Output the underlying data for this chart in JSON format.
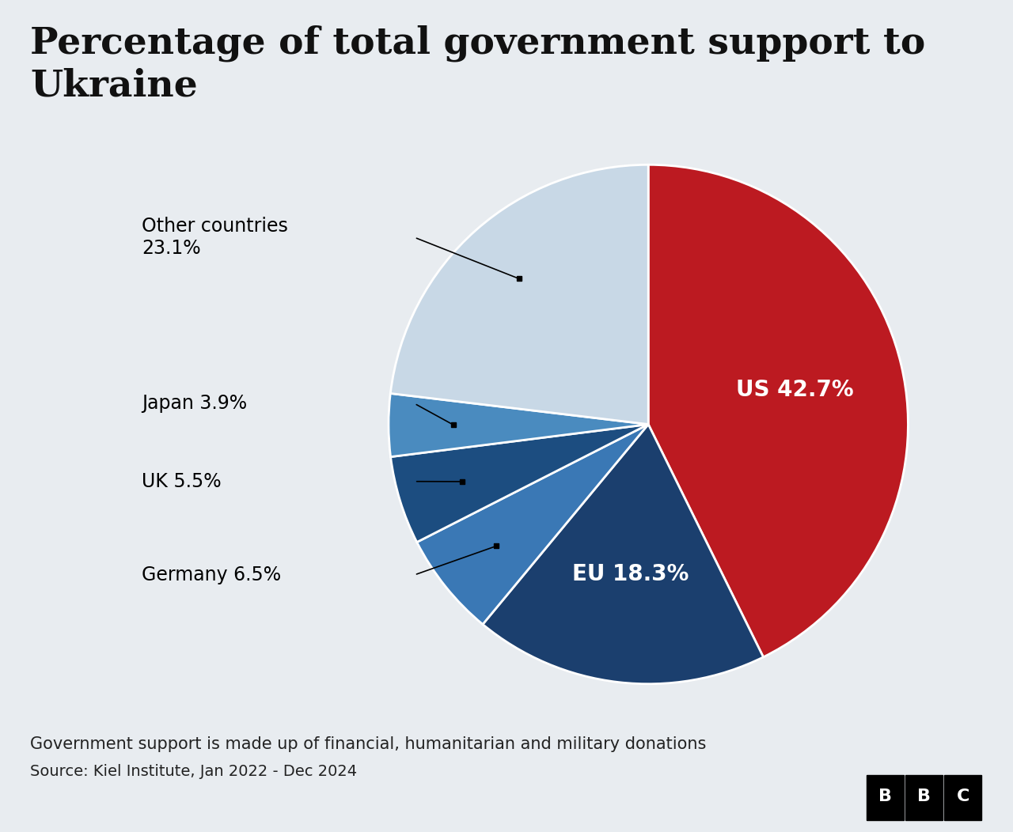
{
  "title": "Percentage of total government support to\nUkraine",
  "subtitle": "Government support is made up of financial, humanitarian and military donations",
  "source": "Source: Kiel Institute, Jan 2022 - Dec 2024",
  "slices": [
    {
      "label": "US",
      "pct": 42.7,
      "color": "#bc1a21",
      "text_color": "white",
      "label_inside": true,
      "display": "US 42.7%"
    },
    {
      "label": "EU",
      "pct": 18.3,
      "color": "#1b3f6e",
      "text_color": "white",
      "label_inside": true,
      "display": "EU 18.3%"
    },
    {
      "label": "Germany",
      "pct": 6.5,
      "color": "#3a78b5",
      "text_color": "black",
      "label_inside": false,
      "display": "Germany 6.5%"
    },
    {
      "label": "UK",
      "pct": 5.5,
      "color": "#1c4d80",
      "text_color": "black",
      "label_inside": false,
      "display": "UK 5.5%"
    },
    {
      "label": "Japan",
      "pct": 3.9,
      "color": "#4a8bbf",
      "text_color": "black",
      "label_inside": false,
      "display": "Japan 3.9%"
    },
    {
      "label": "Other countries",
      "pct": 23.1,
      "color": "#c8d8e6",
      "text_color": "black",
      "label_inside": false,
      "display": "Other countries\n23.1%"
    }
  ],
  "background_color": "#e8ecf0",
  "title_fontsize": 34,
  "subtitle_fontsize": 15,
  "source_fontsize": 14,
  "inside_label_fontsize": 20,
  "outside_label_fontsize": 17
}
